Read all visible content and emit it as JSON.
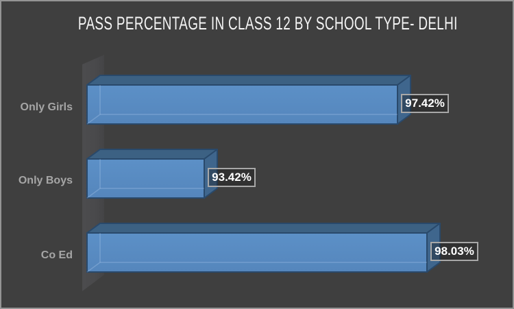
{
  "title": "PASS PERCENTAGE IN CLASS 12 BY SCHOOL TYPE- DELHI",
  "chart_data": {
    "type": "bar",
    "orientation": "horizontal",
    "style": "3d",
    "title": "PASS PERCENTAGE IN CLASS 12 BY SCHOOL TYPE- DELHI",
    "categories": [
      "Only Girls",
      "Only Boys",
      "Co Ed"
    ],
    "values": [
      97.42,
      93.42,
      98.03
    ],
    "data_labels": [
      "97.42%",
      "93.42%",
      "98.03%"
    ],
    "xlabel": "",
    "ylabel": "",
    "xlim": [
      91,
      99
    ],
    "axis_visible": false,
    "gridlines": false,
    "legend": false,
    "colors": {
      "background": "#3F3F3F",
      "outer_border": "#959595",
      "wall_light": "#4C4C4E",
      "wall_dark": "#444446",
      "bar_front_top": "#5C90C7",
      "bar_front_bottom": "#5586BC",
      "bar_top_face": "#3C6183",
      "bar_side_face": "#3F668D",
      "bar_outline": "#29496B",
      "title_text": "#F5F5F5",
      "category_text": "#A6A6A6",
      "value_text": "#FFFFFF",
      "value_box_border": "#A8A8A8"
    }
  }
}
